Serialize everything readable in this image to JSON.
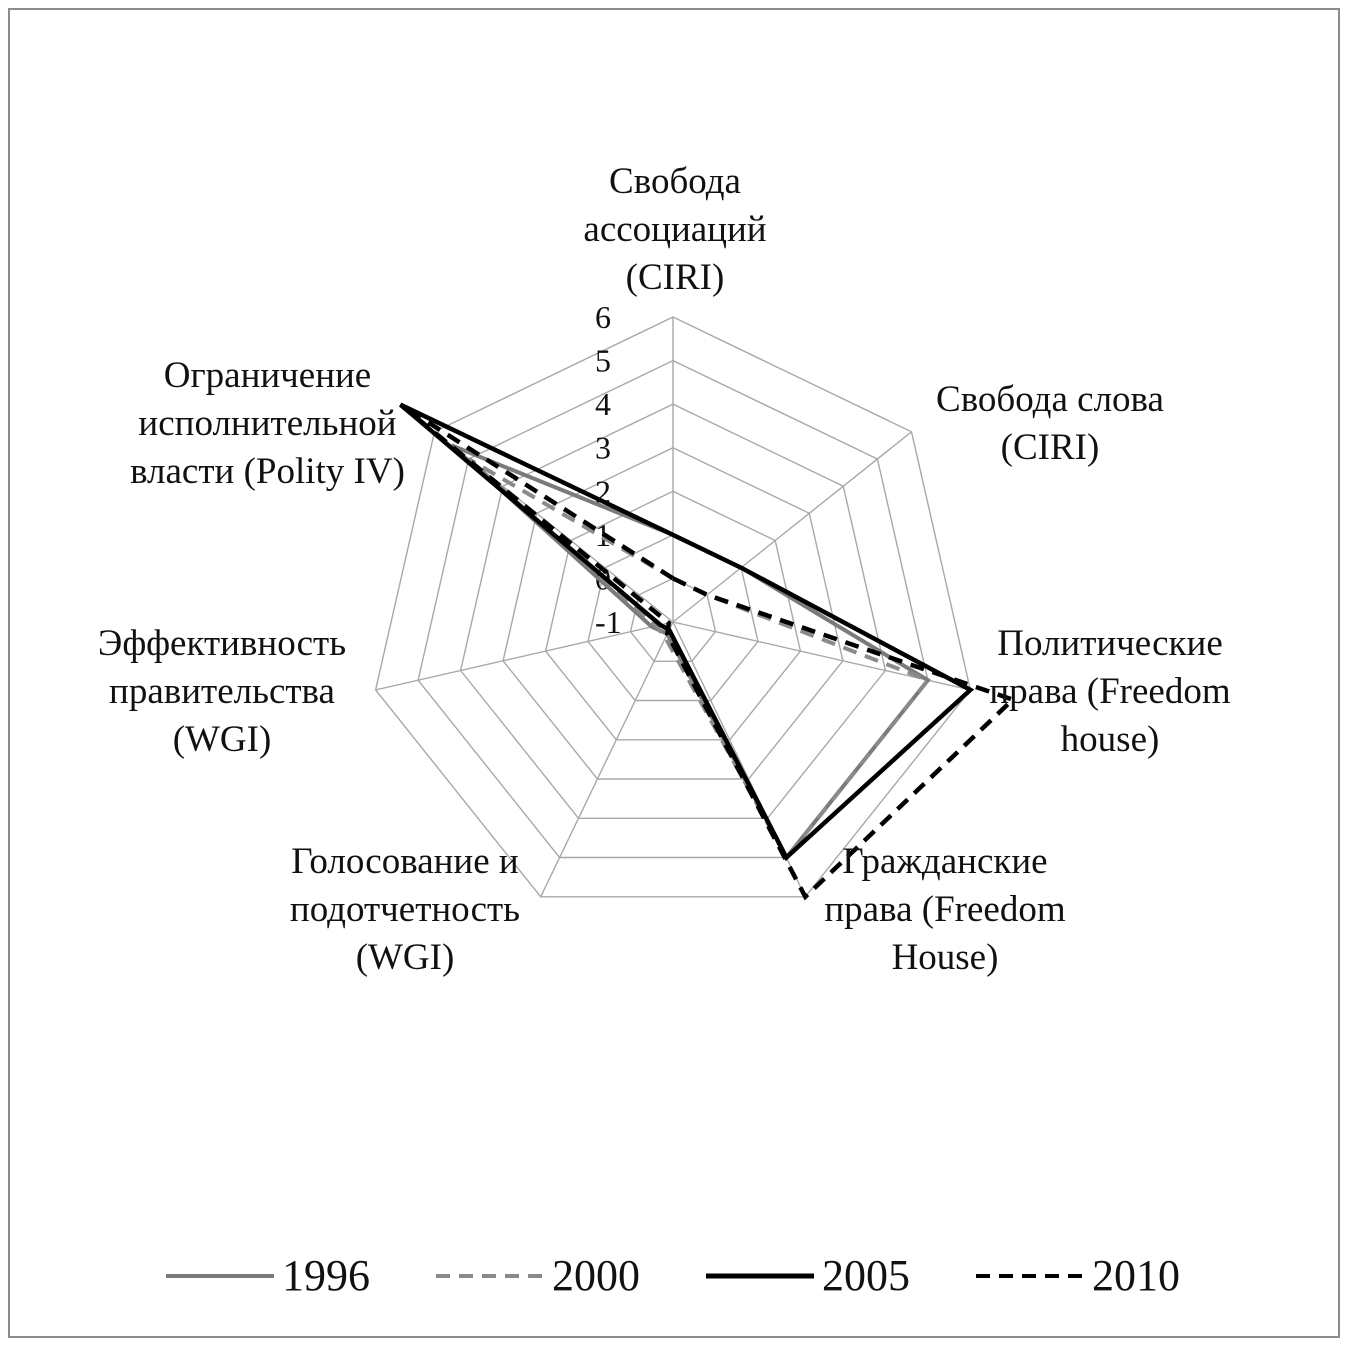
{
  "chart_data": {
    "type": "radar",
    "axes": [
      "Свобода\nассоциаций\n(CIRI)",
      "Свобода слова\n(CIRI)",
      "Политические\nправа (Freedom\nhouse)",
      "Гражданские\nправа (Freedom\nHouse)",
      "Голосование и\nподотчетность\n(WGI)",
      "Эффективность\nправительства\n(WGI)",
      "Ограничение\nисполнительной\nвласти (Polity IV)"
    ],
    "ticks": [
      "-1",
      "0",
      "1",
      "2",
      "3",
      "4",
      "5",
      "6"
    ],
    "range": [
      -1,
      6
    ],
    "grid": true,
    "legend_position": "bottom",
    "series": [
      {
        "name": "1996",
        "color": "#7a7a7a",
        "dash": "solid",
        "values": [
          1,
          1,
          5,
          5,
          -0.7,
          -0.5,
          5.5
        ]
      },
      {
        "name": "2000",
        "color": "#8a8a8a",
        "dash": "dashed",
        "values": [
          0,
          0,
          5,
          5,
          -0.6,
          -0.6,
          5.0
        ]
      },
      {
        "name": "2005",
        "color": "#000000",
        "dash": "solid",
        "values": [
          1,
          1,
          6,
          5,
          -0.8,
          -0.7,
          7.0
        ]
      },
      {
        "name": "2010",
        "color": "#000000",
        "dash": "dashed",
        "values": [
          0,
          0,
          7,
          6,
          -0.7,
          -0.9,
          7.0
        ]
      }
    ]
  }
}
